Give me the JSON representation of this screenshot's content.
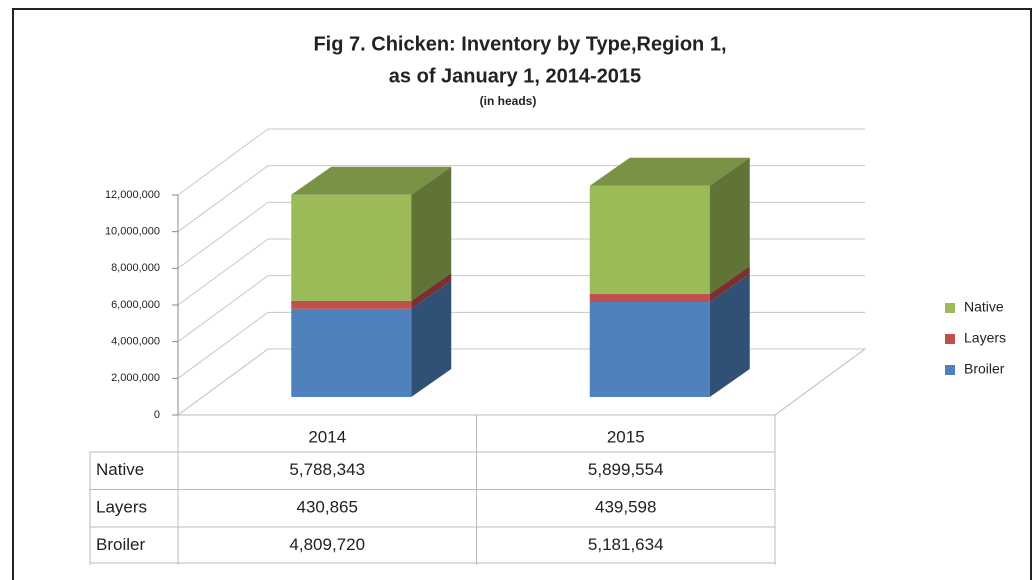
{
  "chart_data": {
    "type": "bar3d_stacked",
    "title": [
      "Fig 7. Chicken: Inventory by  Type,Region 1,",
      "as of January 1, 2014-2015"
    ],
    "subtitle": "(in heads)",
    "categories": [
      "2014",
      "2015"
    ],
    "series": [
      {
        "name": "Broiler",
        "color": "#4f81bd",
        "values": [
          4809720,
          5181634
        ],
        "value_labels": [
          "4,809,720",
          "5,181,634"
        ]
      },
      {
        "name": "Layers",
        "color": "#c0504d",
        "values": [
          430865,
          439598
        ],
        "value_labels": [
          "430,865",
          "439,598"
        ]
      },
      {
        "name": "Native",
        "color": "#9bbb59",
        "values": [
          5788343,
          5899554
        ],
        "value_labels": [
          "5,788,343",
          "5,899,554"
        ]
      }
    ],
    "ylim": [
      0,
      12000000
    ],
    "yticks": [
      0,
      {
        "value": 2000000,
        "label": "2,000,000"
      },
      {
        "value": 4000000,
        "label": "4,000,000"
      },
      {
        "value": 6000000,
        "label": "6,000,000"
      },
      {
        "value": 8000000,
        "label": "8,000,000"
      },
      {
        "value": 10000000,
        "label": "10,000,000"
      },
      {
        "value": 12000000,
        "label": "12,000,000"
      }
    ],
    "grid": true,
    "legend": "right"
  }
}
